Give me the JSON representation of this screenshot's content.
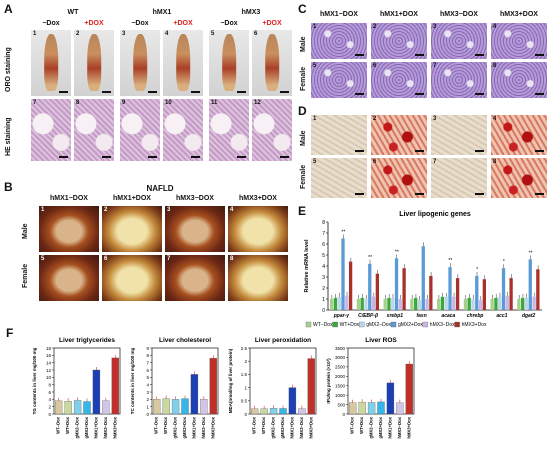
{
  "panel_letters": {
    "a": "A",
    "b": "B",
    "c": "C",
    "d": "D",
    "e": "E",
    "f": "F"
  },
  "panelA": {
    "groups": [
      {
        "name": "WT",
        "minus": "−Dox",
        "plus": "+DOX"
      },
      {
        "name": "hMX1",
        "minus": "−Dox",
        "plus": "+DOX"
      },
      {
        "name": "hMX3",
        "minus": "−Dox",
        "plus": "+DOX"
      }
    ],
    "row_labels": {
      "oro": "ORO staining",
      "he": "HE staining"
    },
    "top_numbers": [
      "1",
      "2",
      "3",
      "4",
      "5",
      "6"
    ],
    "bottom_numbers": [
      "7",
      "8",
      "9",
      "10",
      "11",
      "12"
    ]
  },
  "panelB": {
    "title": "NAFLD",
    "columns": [
      "hMX1−DOX",
      "hMX1+DOX",
      "hMX3−DOX",
      "hMX3+DOX"
    ],
    "rows": [
      "Male",
      "Female"
    ],
    "numbers": [
      "1",
      "2",
      "3",
      "4",
      "5",
      "6",
      "7",
      "8"
    ]
  },
  "panelC": {
    "columns": [
      "hMX1−DOX",
      "hMX1+DOX",
      "hMX3−DOX",
      "hMX3+DOX"
    ],
    "rows": [
      "Male",
      "Female"
    ],
    "numbers": [
      "1",
      "2",
      "3",
      "4",
      "5",
      "6",
      "7",
      "8"
    ]
  },
  "panelD": {
    "rows": [
      "Male",
      "Female"
    ],
    "numbers": [
      "1",
      "2",
      "3",
      "4",
      "5",
      "6",
      "7",
      "8"
    ]
  },
  "colors": {
    "WT-Dox": "#a8d08d",
    "WT+Dox": "#3aa83a",
    "gMX2-Dox": "#bcd6ee",
    "gMX2+Dox": "#5b9bd5",
    "hMX3-Dox": "#c9b6e4",
    "hMX3+Dox": "#a8322a",
    "f_bars": [
      "#d8c8a0",
      "#c9d89f",
      "#7fd0e8",
      "#35b6e6",
      "#1c3fb5",
      "#d3c5e8",
      "#c0302a"
    ]
  },
  "chart_data": [
    {
      "type": "bar",
      "title": "Liver lipogenic genes",
      "ylabel": "Relative mRNA level",
      "ylim": [
        0,
        8
      ],
      "yticks": [
        "0",
        "1",
        "2",
        "3",
        "4",
        "5",
        "6",
        "7",
        "8"
      ],
      "categories": [
        "ppar-γ",
        "C/EBP-β",
        "srebp1",
        "fasn",
        "acaca",
        "chrebp",
        "acc1",
        "dgat2"
      ],
      "series": [
        {
          "name": "WT−Dox",
          "values": [
            1.0,
            1.0,
            1.0,
            1.0,
            1.0,
            1.0,
            1.0,
            1.0
          ]
        },
        {
          "name": "WT+Dox",
          "values": [
            1.1,
            1.1,
            1.1,
            1.1,
            1.2,
            1.1,
            1.1,
            1.1
          ]
        },
        {
          "name": "gMX2−Dox",
          "values": [
            1.2,
            1.0,
            1.1,
            0.9,
            1.2,
            1.0,
            1.2,
            1.1
          ]
        },
        {
          "name": "gMX2+Dox",
          "values": [
            6.5,
            4.2,
            4.7,
            5.8,
            3.9,
            3.1,
            3.8,
            4.6
          ]
        },
        {
          "name": "hMX3−Dox",
          "values": [
            1.3,
            1.2,
            1.0,
            1.0,
            1.2,
            0.9,
            1.3,
            1.2
          ]
        },
        {
          "name": "hMX3+Dox",
          "values": [
            4.4,
            3.3,
            3.8,
            3.1,
            2.9,
            2.8,
            2.9,
            3.7
          ]
        }
      ],
      "significance": [
        "**",
        "**",
        "**",
        "",
        "**",
        "*",
        "*",
        "**"
      ],
      "legend": [
        "WT−Dox",
        "WT+Dox",
        "gMX2−Dox",
        "gMX2+Dox",
        "hMX3−Dox",
        "hMX3+Dox"
      ]
    },
    {
      "type": "bar",
      "title": "Liver triglycerides",
      "ylabel": "TG contents in liver mg/100 mg",
      "ylim": [
        0,
        18
      ],
      "yticks": [
        "0",
        "2",
        "4",
        "6",
        "8",
        "10",
        "12",
        "14",
        "16",
        "18"
      ],
      "categories": [
        "WT−Dox",
        "WT+Dox",
        "gMX2−Dox",
        "gMX2+Dox",
        "hMX1+Dox",
        "hMX3−Dox",
        "hMX3+Dox"
      ],
      "values": [
        3.6,
        3.5,
        3.7,
        3.4,
        12.0,
        3.6,
        15.3
      ]
    },
    {
      "type": "bar",
      "title": "Liver cholesterol",
      "ylabel": "TC contents in liver mg/100 mg",
      "ylim": [
        0,
        9
      ],
      "yticks": [
        "0",
        "1",
        "2",
        "3",
        "4",
        "5",
        "6",
        "7",
        "8",
        "9"
      ],
      "categories": [
        "WT−Dox",
        "WT+Dox",
        "gMX2−Dox",
        "gMX2+Dox",
        "hMX1+Dox",
        "hMX3−Dox",
        "hMX3+Dox"
      ],
      "values": [
        2.0,
        2.1,
        2.0,
        2.1,
        5.4,
        2.0,
        7.6
      ]
    },
    {
      "type": "bar",
      "title": "Liver peroxidation",
      "ylabel": "MDA(nmol/mg of liver protein)",
      "ylim": [
        0,
        2.5
      ],
      "yticks": [
        "0",
        "0.5",
        "1",
        "1.5",
        "2",
        "2.5"
      ],
      "categories": [
        "WT−Dox",
        "WT+Dox",
        "gMX2−Dox",
        "gMX2+Dox",
        "hMX1+Dox",
        "hMX3−Dox",
        "hMX3+Dox"
      ],
      "values": [
        0.2,
        0.2,
        0.22,
        0.21,
        1.0,
        0.2,
        2.1
      ]
    },
    {
      "type": "bar",
      "title": "Liver ROS",
      "ylabel": "IFU/mg protein (×10³)",
      "ylim": [
        0,
        3500
      ],
      "yticks": [
        "0",
        "500",
        "1000",
        "1500",
        "2000",
        "2500",
        "3000",
        "3500"
      ],
      "categories": [
        "WT−Dox",
        "WT+Dox",
        "gMX2−Dox",
        "gMX2+Dox",
        "hMX1+Dox",
        "hMX3−Dox",
        "hMX3+Dox"
      ],
      "values": [
        600,
        620,
        610,
        640,
        1650,
        600,
        2650
      ]
    }
  ]
}
